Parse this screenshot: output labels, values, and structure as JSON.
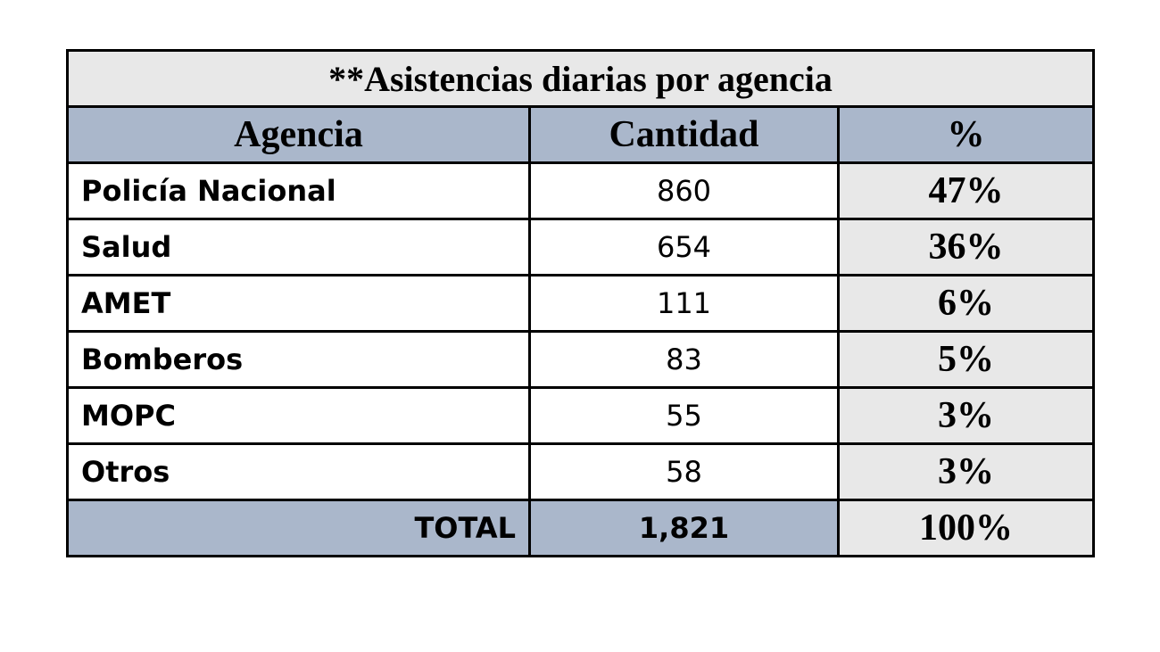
{
  "title": "**Asistencias diarias por agencia",
  "headers": {
    "agency": "Agencia",
    "quantity": "Cantidad",
    "percent": "%"
  },
  "rows": [
    {
      "agency": "Policía Nacional",
      "quantity": "860",
      "percent": "47%"
    },
    {
      "agency": "Salud",
      "quantity": "654",
      "percent": "36%"
    },
    {
      "agency": "AMET",
      "quantity": "111",
      "percent": "6%"
    },
    {
      "agency": "Bomberos",
      "quantity": "83",
      "percent": "5%"
    },
    {
      "agency": "MOPC",
      "quantity": "55",
      "percent": "3%"
    },
    {
      "agency": "Otros",
      "quantity": "58",
      "percent": "3%"
    }
  ],
  "total": {
    "label": "TOTAL",
    "quantity": "1,821",
    "percent": "100%"
  },
  "colors": {
    "header_fill": "#aab7cb",
    "light_fill": "#e8e8e8",
    "border": "#000000"
  }
}
